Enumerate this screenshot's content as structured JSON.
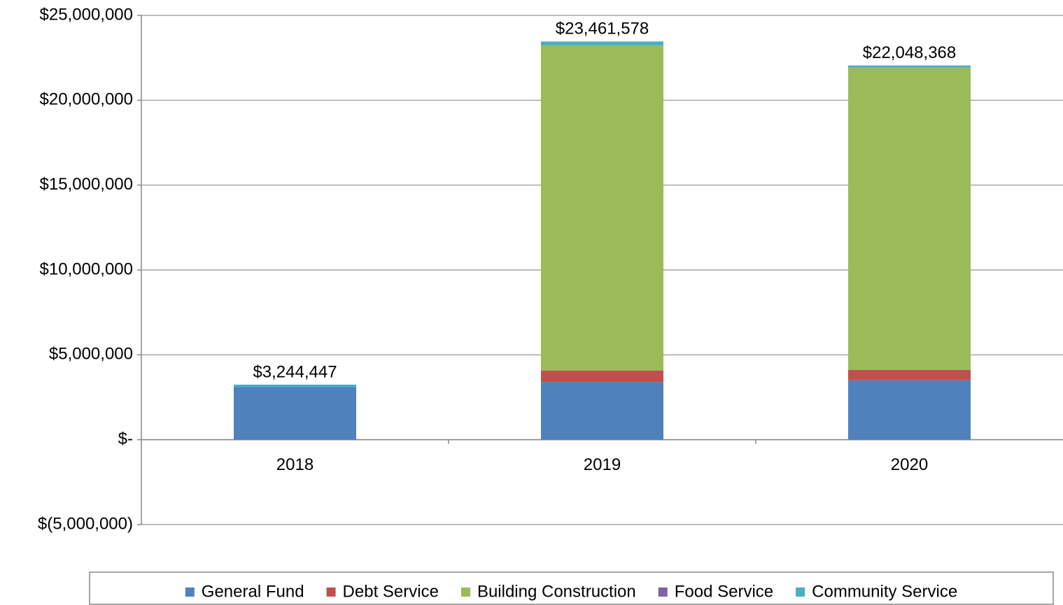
{
  "chart_data": {
    "type": "stacked_bar",
    "categories": [
      "2018",
      "2019",
      "2020"
    ],
    "series": [
      {
        "name": "General Fund",
        "color": "#4f81bd",
        "values": [
          3100000,
          3400000,
          3500000
        ]
      },
      {
        "name": "Debt Service",
        "color": "#c0504d",
        "values": [
          0,
          680000,
          620000
        ]
      },
      {
        "name": "Building Construction",
        "color": "#9bbb59",
        "values": [
          0,
          19150000,
          17800000
        ]
      },
      {
        "name": "Food Service",
        "color": "#8064a2",
        "values": [
          0,
          0,
          0
        ]
      },
      {
        "name": "Community Service",
        "color": "#4bacc6",
        "values": [
          144447,
          231578,
          128368
        ]
      }
    ],
    "totals": [
      3244447,
      23461578,
      22048368
    ],
    "total_labels": [
      "$3,244,447",
      "$23,461,578",
      "$22,048,368"
    ],
    "ylim": [
      -5000000,
      25000000
    ],
    "yticks": [
      {
        "value": -5000000,
        "label": "$(5,000,000)"
      },
      {
        "value": 0,
        "label": "$-"
      },
      {
        "value": 5000000,
        "label": "$5,000,000"
      },
      {
        "value": 10000000,
        "label": "$10,000,000"
      },
      {
        "value": 15000000,
        "label": "$15,000,000"
      },
      {
        "value": 20000000,
        "label": "$20,000,000"
      },
      {
        "value": 25000000,
        "label": "$25,000,000"
      }
    ],
    "grid": true,
    "legend": "bottom"
  }
}
